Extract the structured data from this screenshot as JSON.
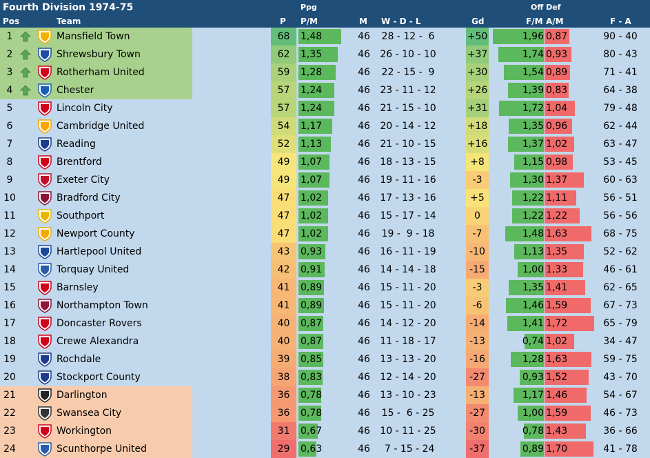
{
  "title": "Fourth Division 1974-75",
  "headers": {
    "pos": "Pos",
    "team": "Team",
    "p": "P",
    "ppg_top": "Ppg",
    "pm": "P/M",
    "m": "M",
    "wdl": "W  -  D  -  L",
    "gd": "Gd",
    "off_def": "Off  Def",
    "fm": "F/M",
    "am": "A/M",
    "fa": "F  -  A"
  },
  "colors": {
    "header_bg": "#1f4e79",
    "promoted_bg": "#a9d18e",
    "reelection_bg": "#f8cbad",
    "row_bg": "#c2d8ec",
    "bar_green": "#5cb85c",
    "bar_red": "#f06a6a",
    "arrow_green": "#5aa55a"
  },
  "rows": [
    {
      "pos": "1",
      "team": "Mansfield Town",
      "p": "68",
      "ppg": "1,48",
      "m": "46",
      "wdl": "28 - 12 -  6",
      "gd": "+50",
      "fm": "1,96",
      "am": "0,87",
      "fa": "90 - 40",
      "zone": "promoted",
      "arrow": "up-arrow-icon",
      "logo_color": "#f2b100"
    },
    {
      "pos": "2",
      "team": "Shrewsbury Town",
      "p": "62",
      "ppg": "1,35",
      "m": "46",
      "wdl": "26 - 10 - 10",
      "gd": "+37",
      "fm": "1,74",
      "am": "0,93",
      "fa": "80 - 43",
      "zone": "promoted",
      "arrow": "up-arrow-icon",
      "logo_color": "#1e4ea0"
    },
    {
      "pos": "3",
      "team": "Rotherham United",
      "p": "59",
      "ppg": "1,28",
      "m": "46",
      "wdl": "22 - 15 -  9",
      "gd": "+30",
      "fm": "1,54",
      "am": "0,89",
      "fa": "71 - 41",
      "zone": "promoted",
      "arrow": "up-arrow-icon",
      "logo_color": "#d0021b"
    },
    {
      "pos": "4",
      "team": "Chester",
      "p": "57",
      "ppg": "1,24",
      "m": "46",
      "wdl": "23 - 11 - 12",
      "gd": "+26",
      "fm": "1,39",
      "am": "0,83",
      "fa": "64 - 38",
      "zone": "promoted",
      "arrow": "up-arrow-icon",
      "logo_color": "#1c5fb0"
    },
    {
      "pos": "5",
      "team": "Lincoln City",
      "p": "57",
      "ppg": "1,24",
      "m": "46",
      "wdl": "21 - 15 - 10",
      "gd": "+31",
      "fm": "1,72",
      "am": "1,04",
      "fa": "79 - 48",
      "zone": "",
      "arrow": "",
      "logo_color": "#d0021b"
    },
    {
      "pos": "6",
      "team": "Cambridge United",
      "p": "54",
      "ppg": "1,17",
      "m": "46",
      "wdl": "20 - 14 - 12",
      "gd": "+18",
      "fm": "1,35",
      "am": "0,96",
      "fa": "62 - 44",
      "zone": "",
      "arrow": "",
      "logo_color": "#f7a600"
    },
    {
      "pos": "7",
      "team": "Reading",
      "p": "52",
      "ppg": "1,13",
      "m": "46",
      "wdl": "21 - 10 - 15",
      "gd": "+16",
      "fm": "1,37",
      "am": "1,02",
      "fa": "63 - 47",
      "zone": "",
      "arrow": "",
      "logo_color": "#1e3c8c"
    },
    {
      "pos": "8",
      "team": "Brentford",
      "p": "49",
      "ppg": "1,07",
      "m": "46",
      "wdl": "18 - 13 - 15",
      "gd": "+8",
      "fm": "1,15",
      "am": "0,98",
      "fa": "53 - 45",
      "zone": "",
      "arrow": "",
      "logo_color": "#d0021b"
    },
    {
      "pos": "9",
      "team": "Exeter City",
      "p": "49",
      "ppg": "1,07",
      "m": "46",
      "wdl": "19 - 11 - 16",
      "gd": "-3",
      "fm": "1,30",
      "am": "1,37",
      "fa": "60 - 63",
      "zone": "",
      "arrow": "",
      "logo_color": "#c0102a"
    },
    {
      "pos": "10",
      "team": "Bradford City",
      "p": "47",
      "ppg": "1,02",
      "m": "46",
      "wdl": "17 - 13 - 16",
      "gd": "+5",
      "fm": "1,22",
      "am": "1,11",
      "fa": "56 - 51",
      "zone": "",
      "arrow": "",
      "logo_color": "#8a1538"
    },
    {
      "pos": "11",
      "team": "Southport",
      "p": "47",
      "ppg": "1,02",
      "m": "46",
      "wdl": "15 - 17 - 14",
      "gd": "0",
      "fm": "1,22",
      "am": "1,22",
      "fa": "56 - 56",
      "zone": "",
      "arrow": "",
      "logo_color": "#e8b600"
    },
    {
      "pos": "12",
      "team": "Newport County",
      "p": "47",
      "ppg": "1,02",
      "m": "46",
      "wdl": "19 -  9 - 18",
      "gd": "-7",
      "fm": "1,48",
      "am": "1,63",
      "fa": "68 - 75",
      "zone": "",
      "arrow": "",
      "logo_color": "#f2a900"
    },
    {
      "pos": "13",
      "team": "Hartlepool United",
      "p": "43",
      "ppg": "0,93",
      "m": "46",
      "wdl": "16 - 11 - 19",
      "gd": "-10",
      "fm": "1,13",
      "am": "1,35",
      "fa": "52 - 62",
      "zone": "",
      "arrow": "",
      "logo_color": "#1a4a9c"
    },
    {
      "pos": "14",
      "team": "Torquay United",
      "p": "42",
      "ppg": "0,91",
      "m": "46",
      "wdl": "14 - 14 - 18",
      "gd": "-15",
      "fm": "1,00",
      "am": "1,33",
      "fa": "46 - 61",
      "zone": "",
      "arrow": "",
      "logo_color": "#2a5caa"
    },
    {
      "pos": "15",
      "team": "Barnsley",
      "p": "41",
      "ppg": "0,89",
      "m": "46",
      "wdl": "15 - 11 - 20",
      "gd": "-3",
      "fm": "1,35",
      "am": "1,41",
      "fa": "62 - 65",
      "zone": "",
      "arrow": "",
      "logo_color": "#d0021b"
    },
    {
      "pos": "16",
      "team": "Northampton Town",
      "p": "41",
      "ppg": "0,89",
      "m": "46",
      "wdl": "15 - 11 - 20",
      "gd": "-6",
      "fm": "1,46",
      "am": "1,59",
      "fa": "67 - 73",
      "zone": "",
      "arrow": "",
      "logo_color": "#8a1538"
    },
    {
      "pos": "17",
      "team": "Doncaster Rovers",
      "p": "40",
      "ppg": "0,87",
      "m": "46",
      "wdl": "14 - 12 - 20",
      "gd": "-14",
      "fm": "1,41",
      "am": "1,72",
      "fa": "65 - 79",
      "zone": "",
      "arrow": "",
      "logo_color": "#d0021b"
    },
    {
      "pos": "18",
      "team": "Crewe Alexandra",
      "p": "40",
      "ppg": "0,87",
      "m": "46",
      "wdl": "11 - 18 - 17",
      "gd": "-13",
      "fm": "0,74",
      "am": "1,02",
      "fa": "34 - 47",
      "zone": "",
      "arrow": "",
      "logo_color": "#d0021b"
    },
    {
      "pos": "19",
      "team": "Rochdale",
      "p": "39",
      "ppg": "0,85",
      "m": "46",
      "wdl": "13 - 13 - 20",
      "gd": "-16",
      "fm": "1,28",
      "am": "1,63",
      "fa": "59 - 75",
      "zone": "",
      "arrow": "",
      "logo_color": "#1e3c8c"
    },
    {
      "pos": "20",
      "team": "Stockport County",
      "p": "38",
      "ppg": "0,83",
      "m": "46",
      "wdl": "12 - 14 - 20",
      "gd": "-27",
      "fm": "0,93",
      "am": "1,52",
      "fa": "43 - 70",
      "zone": "",
      "arrow": "",
      "logo_color": "#1e3c8c"
    },
    {
      "pos": "21",
      "team": "Darlington",
      "p": "36",
      "ppg": "0,78",
      "m": "46",
      "wdl": "13 - 10 - 23",
      "gd": "-13",
      "fm": "1,17",
      "am": "1,46",
      "fa": "54 - 67",
      "zone": "reelection",
      "arrow": "",
      "logo_color": "#222222"
    },
    {
      "pos": "22",
      "team": "Swansea City",
      "p": "36",
      "ppg": "0,78",
      "m": "46",
      "wdl": "15 -  6 - 25",
      "gd": "-27",
      "fm": "1,00",
      "am": "1,59",
      "fa": "46 - 73",
      "zone": "reelection",
      "arrow": "",
      "logo_color": "#333333"
    },
    {
      "pos": "23",
      "team": "Workington",
      "p": "31",
      "ppg": "0,67",
      "m": "46",
      "wdl": "10 - 11 - 25",
      "gd": "-30",
      "fm": "0,78",
      "am": "1,43",
      "fa": "36 - 66",
      "zone": "reelection",
      "arrow": "",
      "logo_color": "#d0021b"
    },
    {
      "pos": "24",
      "team": "Scunthorpe United",
      "p": "29",
      "ppg": "0,63",
      "m": "46",
      "wdl": " 7 - 15 - 24",
      "gd": "-37",
      "fm": "0,89",
      "am": "1,70",
      "fa": "41 - 78",
      "zone": "reelection",
      "arrow": "",
      "logo_color": "#2a5caa"
    }
  ]
}
